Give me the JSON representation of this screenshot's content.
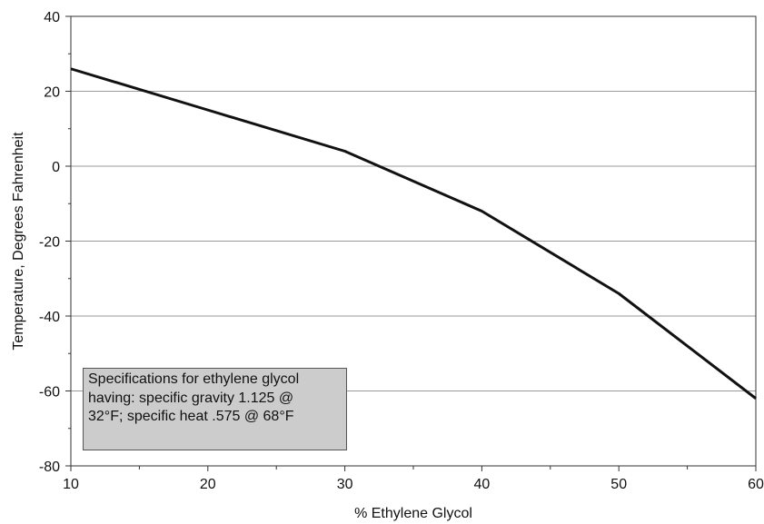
{
  "chart_data": {
    "type": "line",
    "xlabel": "% Ethylene Glycol",
    "ylabel": "Temperature, Degrees Fahrenheit",
    "xlim": [
      10,
      60
    ],
    "ylim": [
      -80,
      40
    ],
    "x_ticks": [
      10,
      20,
      30,
      40,
      50,
      60
    ],
    "y_ticks": [
      -80,
      -60,
      -40,
      -20,
      0,
      20,
      40
    ],
    "grid": "horizontal",
    "series": [
      {
        "x": [
          10,
          20,
          30,
          40,
          50,
          60
        ],
        "values": [
          26,
          15,
          4,
          -12,
          -34,
          -62
        ],
        "color": "#111111"
      }
    ],
    "annotation": {
      "lines": [
        "Specifications for ethylene glycol",
        "having: specific gravity 1.125 @",
        "32°F; specific heat .575 @ 68°F"
      ],
      "background": "#cccccc"
    }
  }
}
